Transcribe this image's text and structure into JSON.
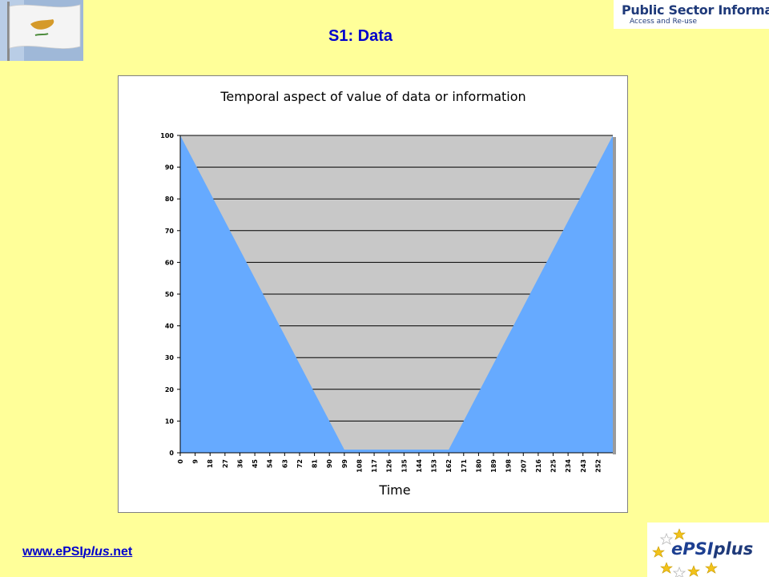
{
  "slide": {
    "title": "S1: Data",
    "footer_link": {
      "prefix": "www.ePSI",
      "italic": "plus",
      "suffix": ".net"
    }
  },
  "logos": {
    "psi_title": "Public Sector Information",
    "psi_subtitle": "Access and Re-use",
    "epsi_prefix": "ePSI",
    "epsi_suffix": "plus"
  },
  "colors": {
    "background": "#ffff99",
    "title": "#0000cc",
    "area_fill": "#66aaff",
    "plot_bg": "#c8c8c8"
  },
  "chart_data": {
    "type": "area",
    "title": "Temporal aspect of value of data or information",
    "xlabel": "Time",
    "ylabel": "",
    "ylim": [
      0,
      100
    ],
    "yticks": [
      0,
      10,
      20,
      30,
      40,
      50,
      60,
      70,
      80,
      90,
      100
    ],
    "xlim": [
      0,
      261
    ],
    "xticks": [
      0,
      9,
      18,
      27,
      36,
      45,
      54,
      63,
      72,
      81,
      90,
      99,
      108,
      117,
      126,
      135,
      144,
      153,
      162,
      171,
      180,
      189,
      198,
      207,
      216,
      225,
      234,
      243,
      252
    ],
    "grid": true,
    "legend": "none",
    "series": [
      {
        "x": [
          0,
          99,
          162,
          261
        ],
        "y": [
          100,
          1,
          1,
          100
        ]
      }
    ]
  }
}
